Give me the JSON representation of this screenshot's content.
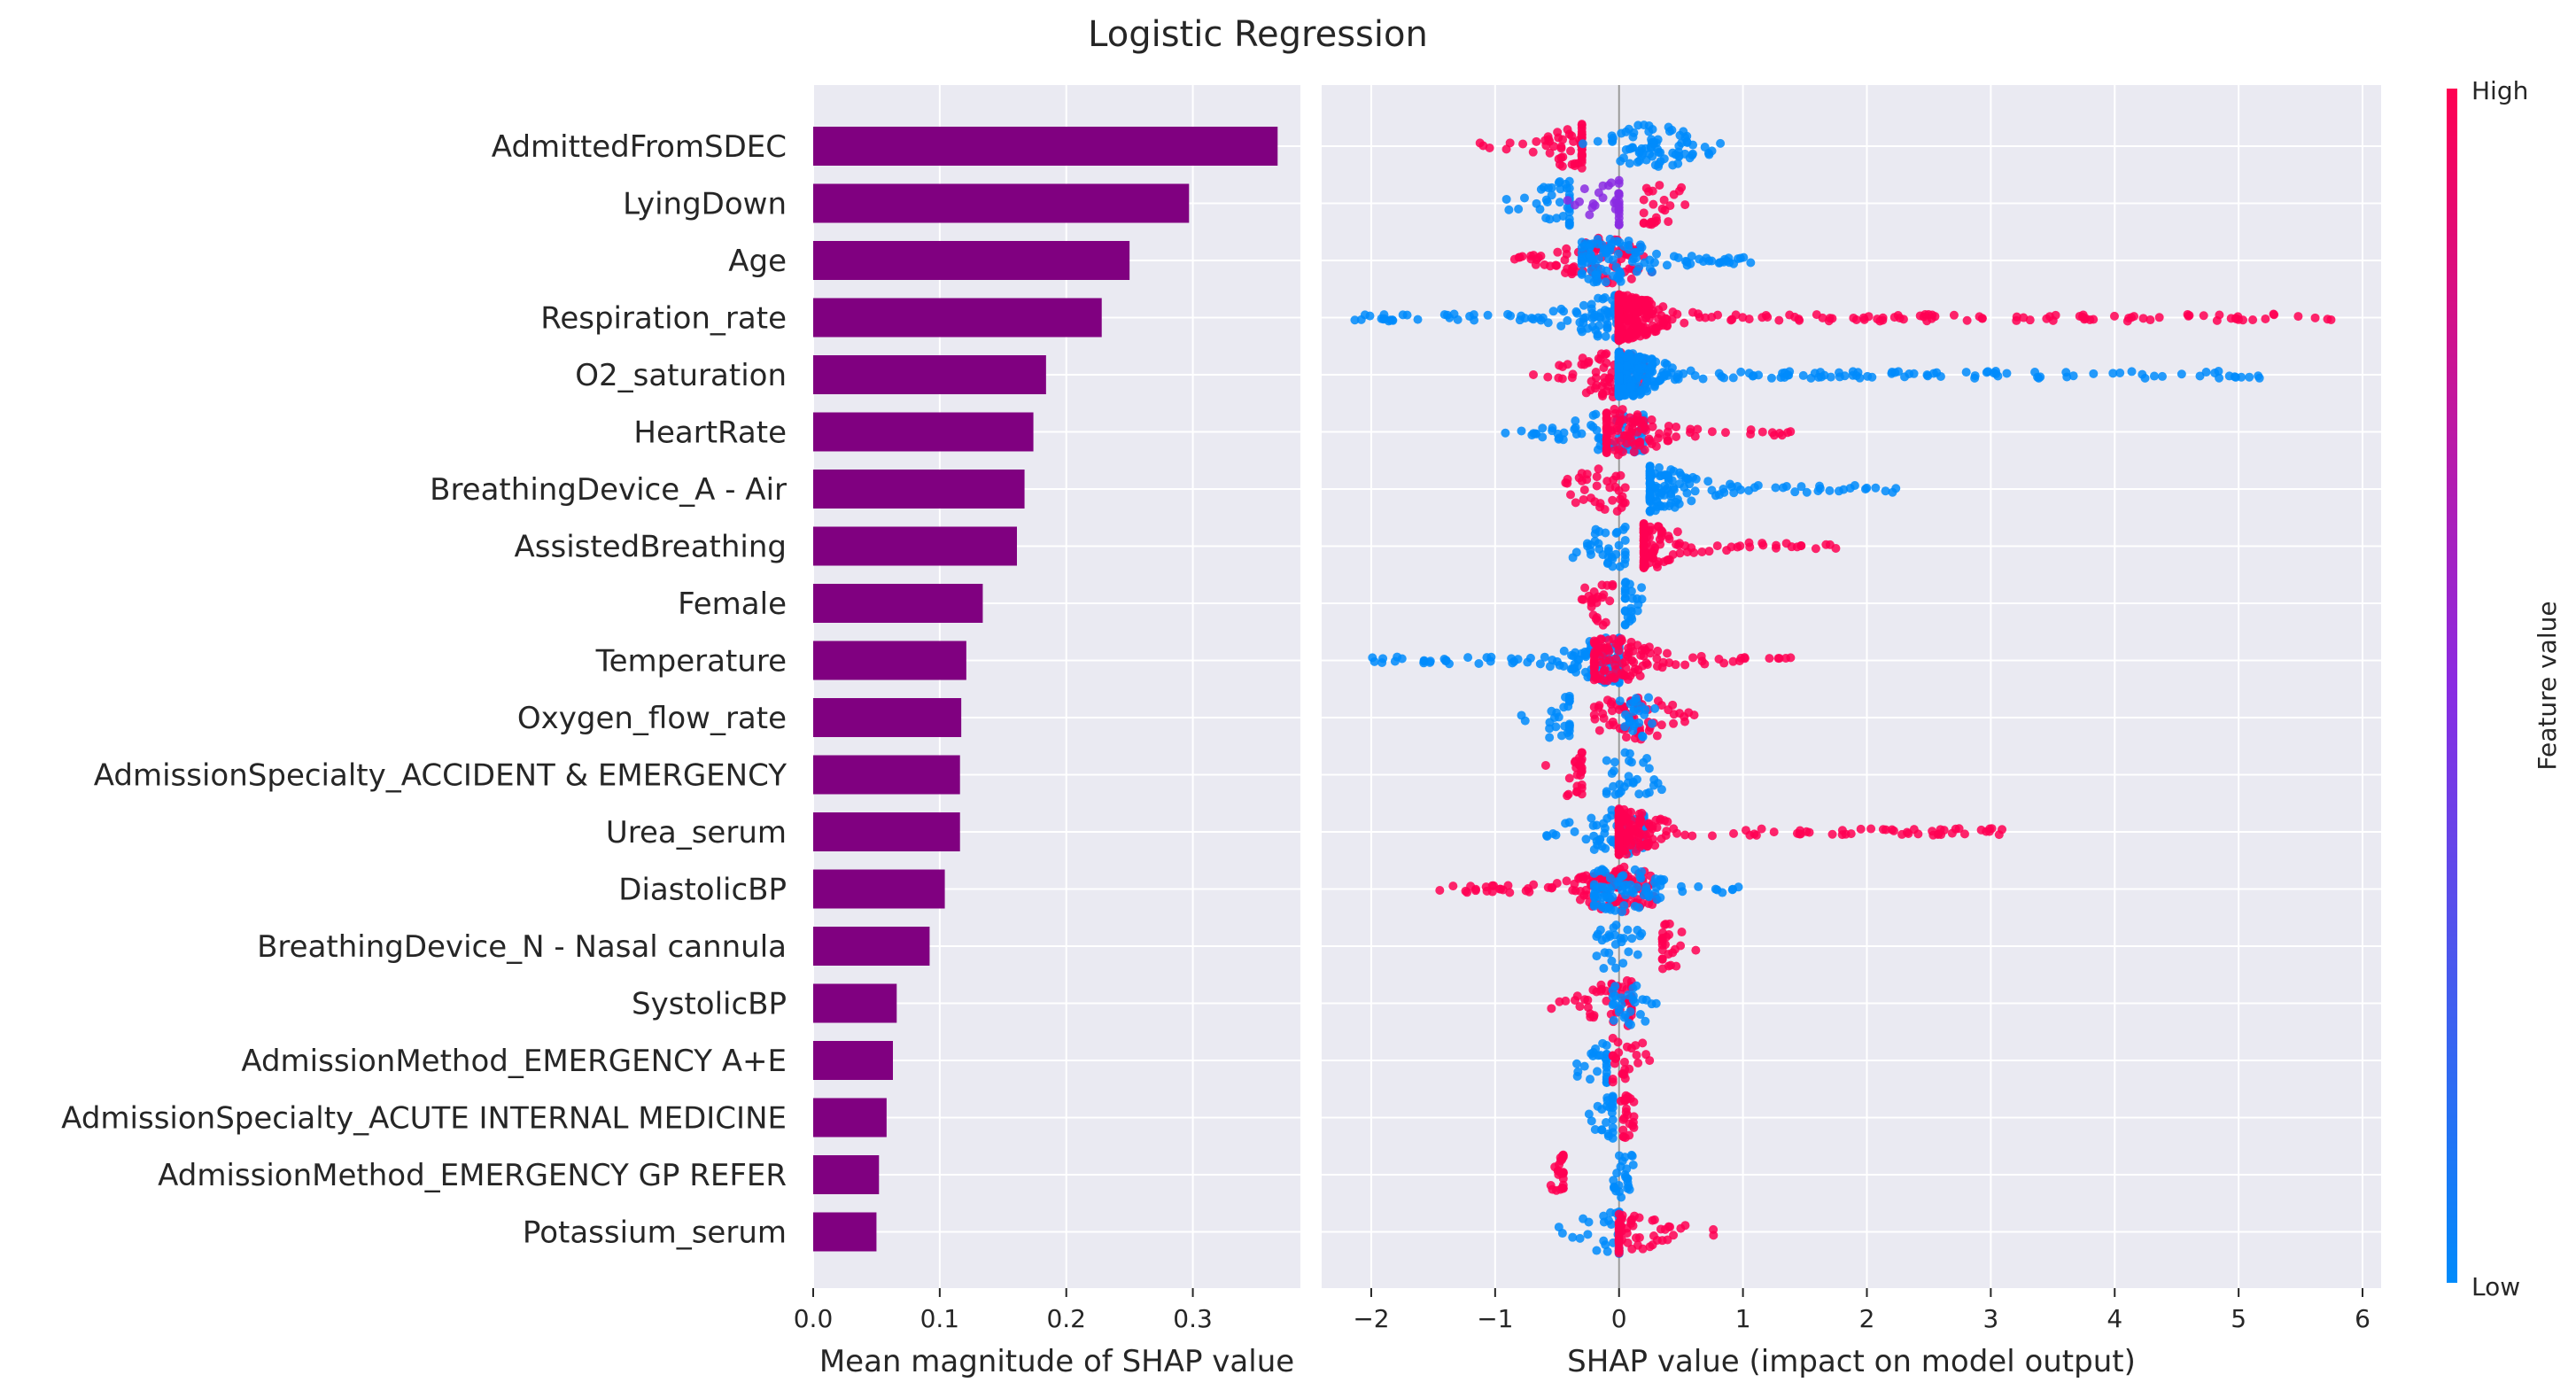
{
  "chart_data": [
    {
      "type": "bar",
      "title": "Logistic Regression",
      "xlabel": "Mean magnitude of SHAP value",
      "ylabel": "",
      "xlim": [
        0,
        0.385
      ],
      "xticks": [
        "0.0",
        "0.1",
        "0.2",
        "0.3"
      ],
      "bar_color": "#800080",
      "categories": [
        "AdmittedFromSDEC",
        "LyingDown",
        "Age",
        "Respiration_rate",
        "O2_saturation",
        "HeartRate",
        "BreathingDevice_A - Air",
        "AssistedBreathing",
        "Female",
        "Temperature",
        "Oxygen_flow_rate",
        "AdmissionSpecialty_ACCIDENT & EMERGENCY",
        "Urea_serum",
        "DiastolicBP",
        "BreathingDevice_N - Nasal cannula",
        "SystolicBP",
        "AdmissionMethod_EMERGENCY A+E",
        "AdmissionSpecialty_ACUTE INTERNAL MEDICINE",
        "AdmissionMethod_EMERGENCY GP REFER",
        "Potassium_serum"
      ],
      "values": [
        0.367,
        0.297,
        0.25,
        0.228,
        0.184,
        0.174,
        0.167,
        0.161,
        0.134,
        0.121,
        0.117,
        0.116,
        0.116,
        0.104,
        0.092,
        0.066,
        0.063,
        0.058,
        0.052,
        0.05
      ]
    },
    {
      "type": "scatter",
      "xlabel": "SHAP value (impact on model output)",
      "xlim": [
        -2.4,
        6.15
      ],
      "xticks": [
        "−2",
        "−1",
        "0",
        "1",
        "2",
        "3",
        "4",
        "5",
        "6"
      ],
      "colorbar": {
        "label": "Feature value",
        "high": "High",
        "low": "Low",
        "high_color": "#ff0052",
        "mid_color": "#8a2be2",
        "low_color": "#008bfb"
      },
      "features": [
        {
          "name": "AdmittedFromSDEC",
          "groups": [
            {
              "range": [
                -1.2,
                -0.3
              ],
              "val": "high"
            },
            {
              "range": [
                -0.3,
                0.82
              ],
              "val": "low"
            }
          ],
          "peak": 0.28
        },
        {
          "name": "LyingDown",
          "groups": [
            {
              "range": [
                -0.95,
                -0.4
              ],
              "val": "low"
            },
            {
              "range": [
                -0.45,
                0.0
              ],
              "val": "mid"
            },
            {
              "range": [
                0.2,
                0.55
              ],
              "val": "high"
            }
          ],
          "peak": 0.3
        },
        {
          "name": "Age",
          "groups": [
            {
              "range": [
                -0.85,
                0.3
              ],
              "val": "high"
            },
            {
              "range": [
                -0.3,
                1.25
              ],
              "val": "low"
            }
          ],
          "peak": -0.1
        },
        {
          "name": "Respiration_rate",
          "groups": [
            {
              "range": [
                -2.15,
                0.0
              ],
              "val": "low"
            },
            {
              "range": [
                0.0,
                5.75
              ],
              "val": "high"
            }
          ],
          "peak": 0.0
        },
        {
          "name": "O2_saturation",
          "groups": [
            {
              "range": [
                -0.85,
                0.2
              ],
              "val": "high"
            },
            {
              "range": [
                0.0,
                5.25
              ],
              "val": "low"
            }
          ],
          "peak": -0.05
        },
        {
          "name": "HeartRate",
          "groups": [
            {
              "range": [
                -0.95,
                0.2
              ],
              "val": "low"
            },
            {
              "range": [
                -0.1,
                1.4
              ],
              "val": "high"
            }
          ],
          "peak": 0.0
        },
        {
          "name": "BreathingDevice_A - Air",
          "groups": [
            {
              "range": [
                -0.45,
                0.05
              ],
              "val": "high"
            },
            {
              "range": [
                0.25,
                2.25
              ],
              "val": "low"
            }
          ],
          "peak": -0.08
        },
        {
          "name": "AssistedBreathing",
          "groups": [
            {
              "range": [
                -0.45,
                0.05
              ],
              "val": "low"
            },
            {
              "range": [
                0.2,
                1.75
              ],
              "val": "high"
            }
          ],
          "peak": -0.08
        },
        {
          "name": "Female",
          "groups": [
            {
              "range": [
                -0.3,
                -0.05
              ],
              "val": "high"
            },
            {
              "range": [
                0.05,
                0.25
              ],
              "val": "low"
            }
          ],
          "peak": -0.15
        },
        {
          "name": "Temperature",
          "groups": [
            {
              "range": [
                -2.0,
                0.0
              ],
              "val": "low"
            },
            {
              "range": [
                -0.2,
                1.45
              ],
              "val": "high"
            }
          ],
          "peak": -0.05
        },
        {
          "name": "Oxygen_flow_rate",
          "groups": [
            {
              "range": [
                -0.8,
                -0.4
              ],
              "val": "low"
            },
            {
              "range": [
                -0.2,
                0.7
              ],
              "val": "high"
            },
            {
              "range": [
                0.0,
                0.3
              ],
              "val": "low"
            }
          ],
          "peak": 0.12
        },
        {
          "name": "AdmissionSpecialty_ACCIDENT & EMERGENCY",
          "groups": [
            {
              "range": [
                -0.6,
                -0.3
              ],
              "val": "high"
            },
            {
              "range": [
                -0.1,
                0.35
              ],
              "val": "low"
            }
          ],
          "peak": 0.07
        },
        {
          "name": "Urea_serum",
          "groups": [
            {
              "range": [
                -0.65,
                0.2
              ],
              "val": "low"
            },
            {
              "range": [
                0.0,
                3.1
              ],
              "val": "high"
            }
          ],
          "peak": 0.0
        },
        {
          "name": "DiastolicBP",
          "groups": [
            {
              "range": [
                -1.45,
                0.3
              ],
              "val": "high"
            },
            {
              "range": [
                -0.2,
                1.0
              ],
              "val": "low"
            }
          ],
          "peak": 0.0
        },
        {
          "name": "BreathingDevice_N - Nasal cannula",
          "groups": [
            {
              "range": [
                -0.2,
                0.2
              ],
              "val": "low"
            },
            {
              "range": [
                0.35,
                0.65
              ],
              "val": "high"
            }
          ],
          "peak": -0.04
        },
        {
          "name": "SystolicBP",
          "groups": [
            {
              "range": [
                -0.6,
                0.1
              ],
              "val": "high"
            },
            {
              "range": [
                -0.05,
                0.35
              ],
              "val": "low"
            }
          ],
          "peak": 0.02
        },
        {
          "name": "AdmissionMethod_EMERGENCY A+E",
          "groups": [
            {
              "range": [
                -0.45,
                -0.1
              ],
              "val": "low"
            },
            {
              "range": [
                -0.05,
                0.25
              ],
              "val": "high"
            }
          ],
          "peak": 0.03
        },
        {
          "name": "AdmissionSpecialty_ACUTE INTERNAL MEDICINE",
          "groups": [
            {
              "range": [
                -0.25,
                -0.05
              ],
              "val": "low"
            },
            {
              "range": [
                0.0,
                0.12
              ],
              "val": "high"
            }
          ],
          "peak": 0.06
        },
        {
          "name": "AdmissionMethod_EMERGENCY GP REFER",
          "groups": [
            {
              "range": [
                -0.6,
                -0.45
              ],
              "val": "high"
            },
            {
              "range": [
                -0.05,
                0.15
              ],
              "val": "low"
            }
          ],
          "peak": 0.03
        },
        {
          "name": "Potassium_serum",
          "groups": [
            {
              "range": [
                -0.5,
                0.0
              ],
              "val": "low"
            },
            {
              "range": [
                0.0,
                0.8
              ],
              "val": "high"
            }
          ],
          "peak": 0.0
        }
      ]
    }
  ]
}
